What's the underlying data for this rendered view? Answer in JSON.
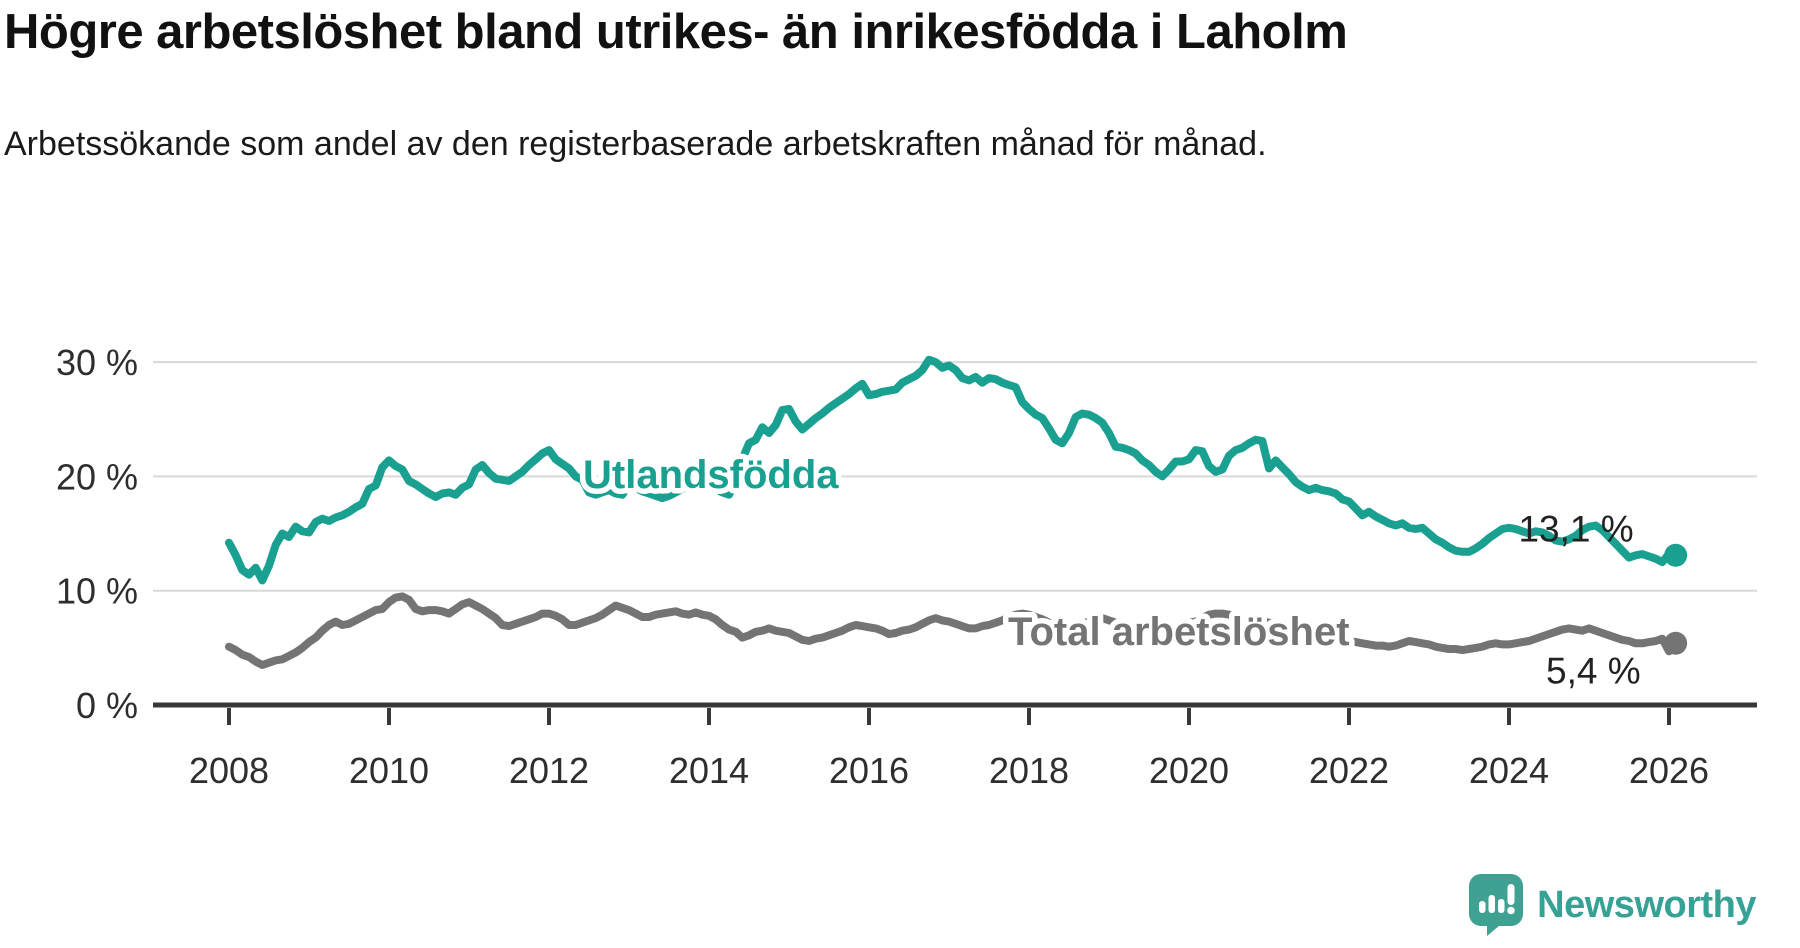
{
  "title": "Högre arbetslöshet bland utrikes- än inrikesfödda i Laholm",
  "subtitle": "Arbetssökande som andel av den registerbaserade arbetskraften månad för månad.",
  "footer": {
    "brand": "Newsworthy"
  },
  "colors": {
    "utlandsfodda": "#1aa091",
    "total": "#747474",
    "grid": "#d9d9d9",
    "axis": "#383838",
    "tick_text": "#2e2e2e",
    "value_text": "#222222",
    "brand_teal": "#35a295"
  },
  "chart_data": {
    "type": "line",
    "title": "Högre arbetslöshet bland utrikes- än inrikesfödda i Laholm",
    "subtitle": "Arbetssökande som andel av den registerbaserade arbetskraften månad för månad.",
    "x_start": "2008-01",
    "x_end": "2026-02",
    "frequency": "monthly",
    "x_ticks": [
      2008,
      2010,
      2012,
      2014,
      2016,
      2018,
      2020,
      2022,
      2024,
      2026
    ],
    "y_ticks": [
      0,
      10,
      20,
      30
    ],
    "y_tick_labels": [
      "0 %",
      "10 %",
      "20 %",
      "30 %"
    ],
    "ylim": [
      0,
      32
    ],
    "grid": true,
    "legend_position": "inline-labels",
    "series": [
      {
        "name": "Utlandsfödda",
        "color": "#1aa091",
        "end_label": "13,1 %",
        "end_value": 13.1,
        "values": [
          14.2,
          13.1,
          11.8,
          11.4,
          12.0,
          10.9,
          12.2,
          14.0,
          15.0,
          14.7,
          15.6,
          15.2,
          15.1,
          16.0,
          16.3,
          16.1,
          16.4,
          16.6,
          16.9,
          17.3,
          17.6,
          18.9,
          19.2,
          20.8,
          21.4,
          20.9,
          20.6,
          19.6,
          19.3,
          18.9,
          18.5,
          18.2,
          18.5,
          18.6,
          18.4,
          19.0,
          19.3,
          20.6,
          21.0,
          20.3,
          19.8,
          19.7,
          19.6,
          20.0,
          20.4,
          21.0,
          21.5,
          22.0,
          22.3,
          21.5,
          21.1,
          20.7,
          20.0,
          19.7,
          18.6,
          18.4,
          18.6,
          18.8,
          18.5,
          18.4,
          19.3,
          19.0,
          18.7,
          18.5,
          18.3,
          18.1,
          18.3,
          18.6,
          18.9,
          19.2,
          19.0,
          19.4,
          19.2,
          18.9,
          18.6,
          18.4,
          19.6,
          21.5,
          22.9,
          23.2,
          24.3,
          23.8,
          24.5,
          25.8,
          25.9,
          24.8,
          24.1,
          24.6,
          25.1,
          25.5,
          26.0,
          26.4,
          26.8,
          27.2,
          27.7,
          28.1,
          27.1,
          27.2,
          27.4,
          27.5,
          27.6,
          28.2,
          28.5,
          28.8,
          29.3,
          30.2,
          30.0,
          29.5,
          29.7,
          29.3,
          28.6,
          28.4,
          28.7,
          28.2,
          28.6,
          28.5,
          28.2,
          28.0,
          27.8,
          26.5,
          25.9,
          25.4,
          25.1,
          24.2,
          23.2,
          22.9,
          23.8,
          25.2,
          25.5,
          25.4,
          25.1,
          24.7,
          23.8,
          22.6,
          22.5,
          22.3,
          22.0,
          21.4,
          21.0,
          20.4,
          20.0,
          20.6,
          21.3,
          21.3,
          21.5,
          22.3,
          22.2,
          20.9,
          20.4,
          20.6,
          21.8,
          22.3,
          22.5,
          22.9,
          23.2,
          23.1,
          20.7,
          21.4,
          20.8,
          20.2,
          19.5,
          19.1,
          18.8,
          19.0,
          18.8,
          18.7,
          18.5,
          18.0,
          17.8,
          17.2,
          16.6,
          16.9,
          16.5,
          16.2,
          15.9,
          15.7,
          15.9,
          15.5,
          15.4,
          15.5,
          15.0,
          14.5,
          14.2,
          13.8,
          13.5,
          13.4,
          13.4,
          13.7,
          14.1,
          14.6,
          15.0,
          15.4,
          15.5,
          15.4,
          15.2,
          15.0,
          15.2,
          15.1,
          14.8,
          14.4,
          14.3,
          14.5,
          14.8,
          15.3,
          15.6,
          15.7,
          15.3,
          14.7,
          14.1,
          13.5,
          12.9,
          13.1,
          13.2,
          13.0,
          12.8,
          12.5,
          13.2,
          13.1
        ]
      },
      {
        "name": "Total arbetslöshet",
        "color": "#747474",
        "end_label": "5,4 %",
        "end_value": 5.4,
        "values": [
          5.1,
          4.8,
          4.4,
          4.2,
          3.8,
          3.5,
          3.7,
          3.9,
          4.0,
          4.3,
          4.6,
          5.0,
          5.5,
          5.9,
          6.5,
          7.0,
          7.3,
          7.0,
          7.1,
          7.4,
          7.7,
          8.0,
          8.3,
          8.4,
          9.0,
          9.4,
          9.5,
          9.2,
          8.4,
          8.2,
          8.3,
          8.3,
          8.2,
          8.0,
          8.4,
          8.8,
          9.0,
          8.7,
          8.4,
          8.0,
          7.6,
          7.0,
          6.9,
          7.1,
          7.3,
          7.5,
          7.7,
          8.0,
          8.0,
          7.8,
          7.5,
          7.0,
          7.0,
          7.2,
          7.4,
          7.6,
          7.9,
          8.3,
          8.7,
          8.5,
          8.3,
          8.0,
          7.7,
          7.7,
          7.9,
          8.0,
          8.1,
          8.2,
          8.0,
          7.9,
          8.1,
          7.9,
          7.8,
          7.5,
          7.0,
          6.6,
          6.4,
          5.9,
          6.1,
          6.4,
          6.5,
          6.7,
          6.5,
          6.4,
          6.3,
          6.0,
          5.7,
          5.6,
          5.8,
          5.9,
          6.1,
          6.3,
          6.5,
          6.8,
          7.0,
          6.9,
          6.8,
          6.7,
          6.5,
          6.2,
          6.3,
          6.5,
          6.6,
          6.8,
          7.1,
          7.4,
          7.6,
          7.4,
          7.3,
          7.1,
          6.9,
          6.7,
          6.7,
          6.9,
          7.0,
          7.2,
          7.4,
          7.7,
          7.9,
          8.0,
          7.9,
          7.7,
          7.5,
          7.2,
          6.9,
          6.7,
          6.8,
          7.0,
          7.1,
          7.3,
          7.5,
          7.6,
          7.4,
          7.2,
          7.0,
          6.8,
          6.6,
          6.4,
          6.5,
          6.6,
          6.7,
          6.8,
          6.9,
          7.0,
          7.2,
          7.3,
          7.6,
          7.9,
          8.0,
          8.0,
          7.9,
          7.8,
          7.7,
          7.5,
          7.4,
          7.3,
          7.2,
          7.1,
          6.9,
          6.7,
          6.5,
          6.3,
          6.2,
          6.1,
          6.0,
          5.9,
          5.8,
          5.7,
          5.6,
          5.5,
          5.4,
          5.3,
          5.2,
          5.2,
          5.1,
          5.2,
          5.4,
          5.6,
          5.5,
          5.4,
          5.3,
          5.1,
          5.0,
          4.9,
          4.9,
          4.8,
          4.9,
          5.0,
          5.1,
          5.3,
          5.4,
          5.3,
          5.3,
          5.4,
          5.5,
          5.6,
          5.8,
          6.0,
          6.2,
          6.4,
          6.6,
          6.7,
          6.6,
          6.5,
          6.7,
          6.5,
          6.3,
          6.1,
          5.9,
          5.7,
          5.6,
          5.4,
          5.4,
          5.5,
          5.6,
          5.8,
          4.7,
          5.4
        ]
      }
    ]
  }
}
